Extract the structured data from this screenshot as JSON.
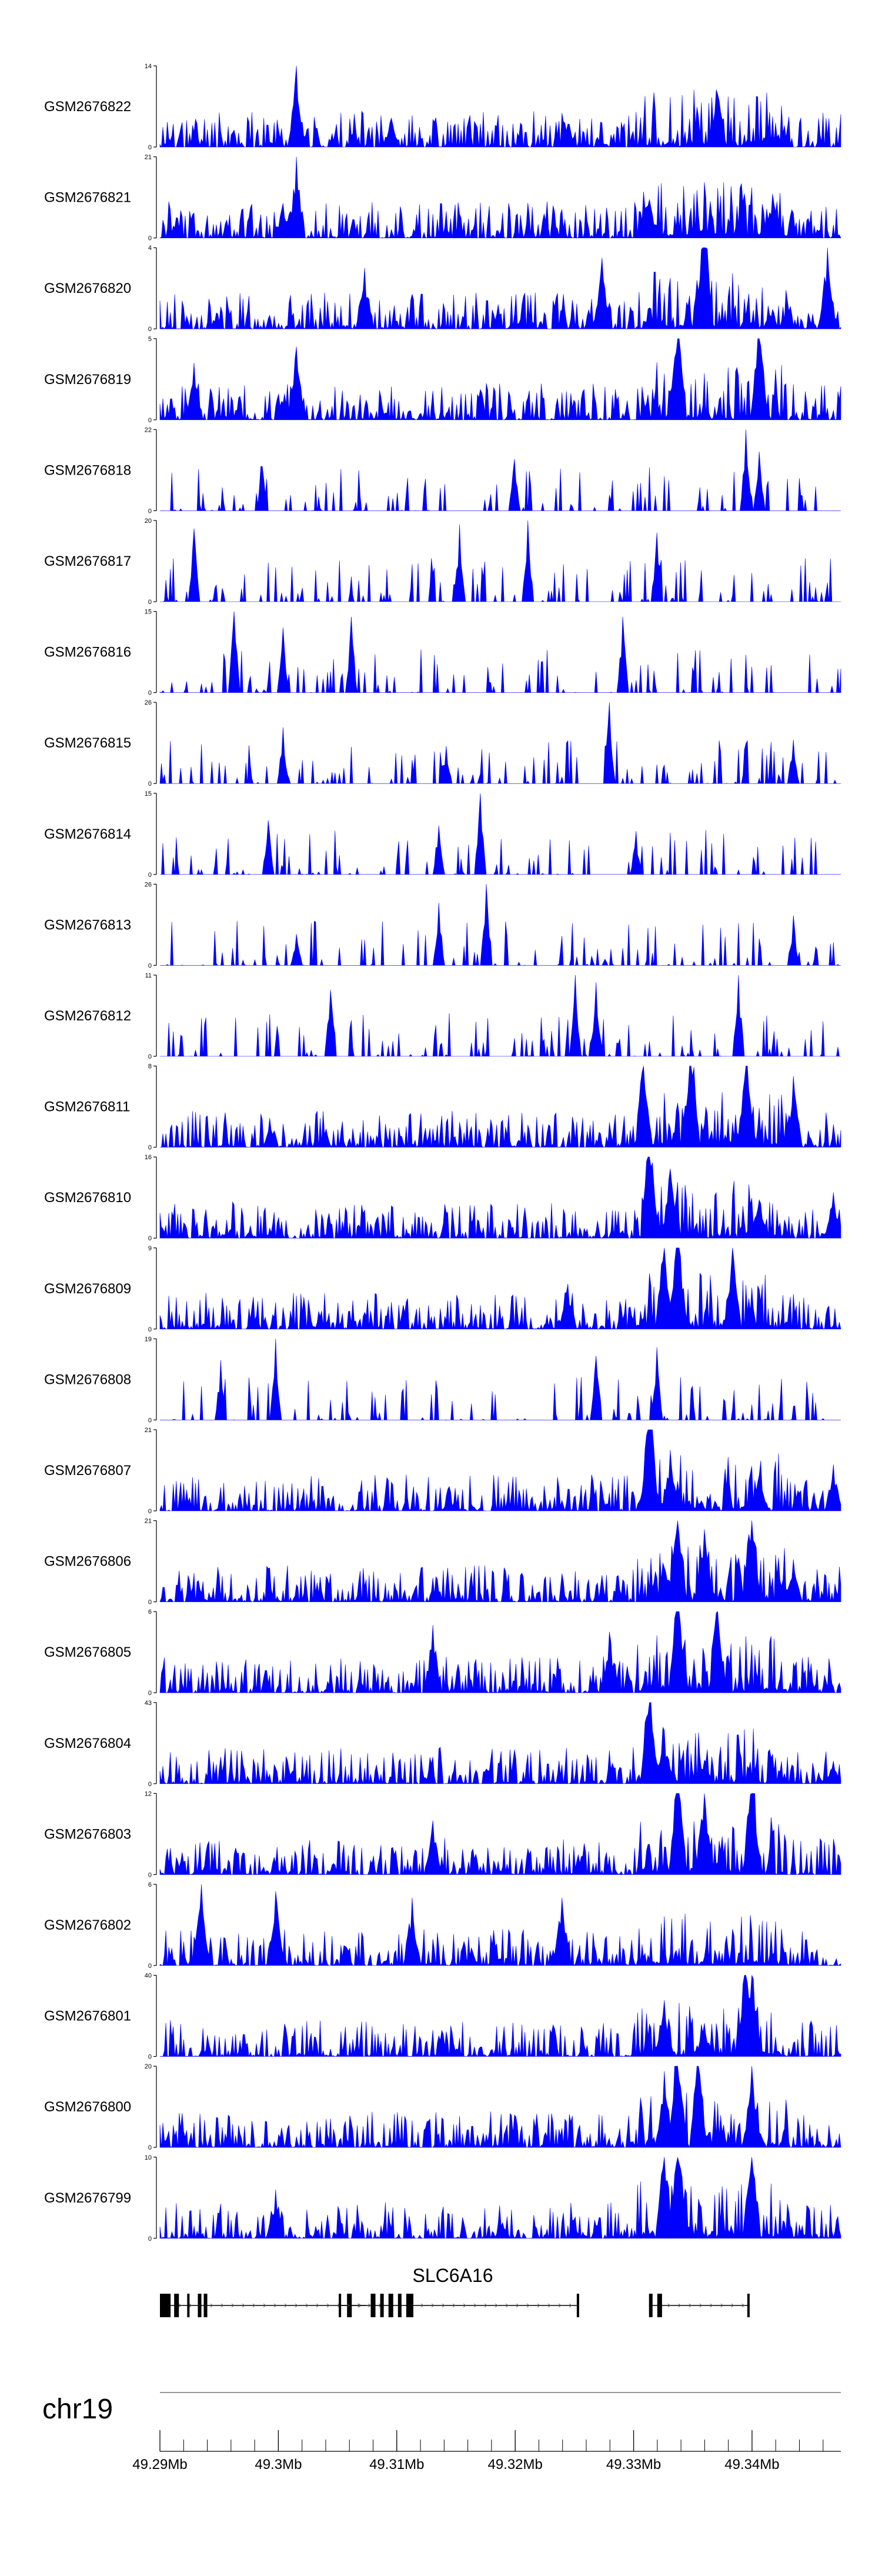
{
  "chart_data": {
    "type": "area",
    "title": "",
    "chromosome": "chr19",
    "region_mb": [
      49.29,
      49.3475
    ],
    "fill_color": "#0000ff",
    "axis_color": "#000000",
    "tracks": [
      {
        "name": "GSM2676822",
        "ymax": "14",
        "ymin": "0",
        "max": 14,
        "seed": 11,
        "style": "dense",
        "peaks": [
          [
            0.2,
            14
          ],
          [
            0.34,
            5
          ],
          [
            0.6,
            4
          ],
          [
            0.82,
            6
          ]
        ]
      },
      {
        "name": "GSM2676821",
        "ymax": "21",
        "ymin": "0",
        "max": 21,
        "seed": 12,
        "style": "dense",
        "peaks": [
          [
            0.2,
            21
          ],
          [
            0.18,
            9
          ],
          [
            0.72,
            6
          ],
          [
            0.9,
            7
          ]
        ]
      },
      {
        "name": "GSM2676820",
        "ymax": "4",
        "ymin": "0",
        "max": 4,
        "seed": 13,
        "style": "dense",
        "peaks": [
          [
            0.8,
            4
          ],
          [
            0.65,
            3.5
          ],
          [
            0.98,
            4
          ],
          [
            0.3,
            3
          ]
        ]
      },
      {
        "name": "GSM2676819",
        "ymax": "5",
        "ymin": "0",
        "max": 5,
        "seed": 14,
        "style": "dense",
        "peaks": [
          [
            0.76,
            5
          ],
          [
            0.2,
            4.5
          ],
          [
            0.05,
            3.5
          ],
          [
            0.88,
            4
          ]
        ]
      },
      {
        "name": "GSM2676818",
        "ymax": "22",
        "ymin": "0",
        "max": 22,
        "seed": 15,
        "style": "sparse",
        "peaks": [
          [
            0.86,
            22
          ],
          [
            0.15,
            12
          ],
          [
            0.52,
            14
          ],
          [
            0.88,
            16
          ]
        ]
      },
      {
        "name": "GSM2676817",
        "ymax": "20",
        "ymin": "0",
        "max": 20,
        "seed": 16,
        "style": "sparse",
        "peaks": [
          [
            0.54,
            20
          ],
          [
            0.05,
            18
          ],
          [
            0.44,
            19
          ],
          [
            0.73,
            17
          ]
        ]
      },
      {
        "name": "GSM2676816",
        "ymax": "15",
        "ymin": "0",
        "max": 15,
        "seed": 17,
        "style": "sparse",
        "peaks": [
          [
            0.11,
            15
          ],
          [
            0.28,
            14
          ],
          [
            0.68,
            14
          ],
          [
            0.18,
            12
          ]
        ]
      },
      {
        "name": "GSM2676815",
        "ymax": "26",
        "ymin": "0",
        "max": 26,
        "seed": 18,
        "style": "sparse",
        "peaks": [
          [
            0.66,
            26
          ],
          [
            0.18,
            18
          ],
          [
            0.93,
            14
          ],
          [
            0.42,
            12
          ]
        ]
      },
      {
        "name": "GSM2676814",
        "ymax": "15",
        "ymin": "0",
        "max": 15,
        "seed": 19,
        "style": "sparse",
        "peaks": [
          [
            0.47,
            15
          ],
          [
            0.16,
            10
          ],
          [
            0.41,
            9
          ],
          [
            0.7,
            8
          ]
        ]
      },
      {
        "name": "GSM2676813",
        "ymax": "26",
        "ymin": "0",
        "max": 26,
        "seed": 20,
        "style": "sparse",
        "peaks": [
          [
            0.48,
            26
          ],
          [
            0.41,
            20
          ],
          [
            0.93,
            16
          ],
          [
            0.2,
            10
          ]
        ]
      },
      {
        "name": "GSM2676812",
        "ymax": "11",
        "ymin": "0",
        "max": 11,
        "seed": 21,
        "style": "sparse",
        "peaks": [
          [
            0.61,
            11
          ],
          [
            0.64,
            10
          ],
          [
            0.85,
            11
          ],
          [
            0.25,
            9
          ]
        ]
      },
      {
        "name": "GSM2676811",
        "ymax": "8",
        "ymin": "0",
        "max": 8,
        "seed": 22,
        "style": "dense",
        "peaks": [
          [
            0.78,
            8
          ],
          [
            0.86,
            7
          ],
          [
            0.71,
            6.5
          ],
          [
            0.93,
            7
          ]
        ]
      },
      {
        "name": "GSM2676810",
        "ymax": "16",
        "ymin": "0",
        "max": 16,
        "seed": 23,
        "style": "dense",
        "peaks": [
          [
            0.72,
            16
          ],
          [
            0.75,
            9
          ],
          [
            0.99,
            9
          ],
          [
            0.88,
            5
          ]
        ]
      },
      {
        "name": "GSM2676809",
        "ymax": "9",
        "ymin": "0",
        "max": 9,
        "seed": 24,
        "style": "dense",
        "peaks": [
          [
            0.76,
            9
          ],
          [
            0.74,
            7
          ],
          [
            0.84,
            6
          ],
          [
            0.6,
            5
          ]
        ]
      },
      {
        "name": "GSM2676808",
        "ymax": "19",
        "ymin": "0",
        "max": 19,
        "seed": 25,
        "style": "sparse",
        "peaks": [
          [
            0.17,
            19
          ],
          [
            0.73,
            17
          ],
          [
            0.09,
            14
          ],
          [
            0.64,
            15
          ]
        ]
      },
      {
        "name": "GSM2676807",
        "ymax": "21",
        "ymin": "0",
        "max": 21,
        "seed": 26,
        "style": "dense",
        "peaks": [
          [
            0.72,
            21
          ],
          [
            0.75,
            10
          ],
          [
            0.99,
            12
          ],
          [
            0.88,
            6
          ]
        ]
      },
      {
        "name": "GSM2676806",
        "ymax": "21",
        "ymin": "0",
        "max": 21,
        "seed": 27,
        "style": "dense",
        "peaks": [
          [
            0.76,
            21
          ],
          [
            0.87,
            19
          ],
          [
            0.8,
            12
          ],
          [
            0.93,
            11
          ]
        ]
      },
      {
        "name": "GSM2676805",
        "ymax": "6",
        "ymin": "0",
        "max": 6,
        "seed": 28,
        "style": "dense",
        "peaks": [
          [
            0.76,
            6
          ],
          [
            0.4,
            5
          ],
          [
            0.66,
            4.5
          ],
          [
            0.82,
            5
          ]
        ]
      },
      {
        "name": "GSM2676804",
        "ymax": "43",
        "ymin": "0",
        "max": 43,
        "seed": 29,
        "style": "dense",
        "peaks": [
          [
            0.72,
            43
          ],
          [
            0.74,
            18
          ],
          [
            0.99,
            12
          ],
          [
            0.8,
            8
          ]
        ]
      },
      {
        "name": "GSM2676803",
        "ymax": "12",
        "ymin": "0",
        "max": 12,
        "seed": 30,
        "style": "dense",
        "peaks": [
          [
            0.87,
            12
          ],
          [
            0.76,
            11
          ],
          [
            0.8,
            9
          ],
          [
            0.4,
            8
          ]
        ]
      },
      {
        "name": "GSM2676802",
        "ymax": "6",
        "ymin": "0",
        "max": 6,
        "seed": 31,
        "style": "dense",
        "peaks": [
          [
            0.06,
            6
          ],
          [
            0.17,
            5.5
          ],
          [
            0.37,
            5
          ],
          [
            0.59,
            5
          ]
        ]
      },
      {
        "name": "GSM2676801",
        "ymax": "40",
        "ymin": "0",
        "max": 40,
        "seed": 32,
        "style": "dense",
        "peaks": [
          [
            0.86,
            40
          ],
          [
            0.74,
            18
          ],
          [
            0.87,
            30
          ],
          [
            0.8,
            10
          ]
        ]
      },
      {
        "name": "GSM2676800",
        "ymax": "20",
        "ymin": "0",
        "max": 20,
        "seed": 33,
        "style": "dense",
        "peaks": [
          [
            0.76,
            20
          ],
          [
            0.79,
            16
          ],
          [
            0.87,
            14
          ],
          [
            0.74,
            12
          ]
        ]
      },
      {
        "name": "GSM2676799",
        "ymax": "10",
        "ymin": "0",
        "max": 10,
        "seed": 34,
        "style": "dense",
        "peaks": [
          [
            0.76,
            10
          ],
          [
            0.87,
            9
          ],
          [
            0.74,
            8
          ],
          [
            0.17,
            6
          ]
        ]
      }
    ],
    "gene": {
      "name": "SLC6A16",
      "strand": "+",
      "transcripts": [
        {
          "start_mb": 49.29,
          "end_mb": 49.3074,
          "exons_mb": [
            [
              49.29,
              49.2909
            ],
            [
              49.2912,
              49.2916
            ],
            [
              49.2923,
              49.2925
            ],
            [
              49.2932,
              49.2935
            ],
            [
              49.2937,
              49.294
            ],
            [
              49.3058,
              49.3062
            ]
          ]
        },
        {
          "start_mb": 49.3051,
          "end_mb": 49.3252,
          "exons_mb": [
            [
              49.3051,
              49.3053
            ],
            [
              49.3078,
              49.3082
            ],
            [
              49.3086,
              49.3089
            ],
            [
              49.3093,
              49.3097
            ],
            [
              49.3101,
              49.3104
            ],
            [
              49.3108,
              49.3114
            ],
            [
              49.3252,
              49.3254
            ]
          ]
        },
        {
          "start_mb": 49.3313,
          "end_mb": 49.3398,
          "exons_mb": [
            [
              49.3313,
              49.3316
            ],
            [
              49.332,
              49.3324
            ],
            [
              49.3396,
              49.3398
            ]
          ]
        }
      ]
    },
    "x_axis": {
      "label_suffix": "Mb",
      "ticks": [
        "49.29Mb",
        "49.3Mb",
        "49.31Mb",
        "49.32Mb",
        "49.33Mb",
        "49.34Mb"
      ],
      "tick_values": [
        49.29,
        49.3,
        49.31,
        49.32,
        49.33,
        49.34
      ],
      "minor_step_mb": 0.002
    }
  }
}
